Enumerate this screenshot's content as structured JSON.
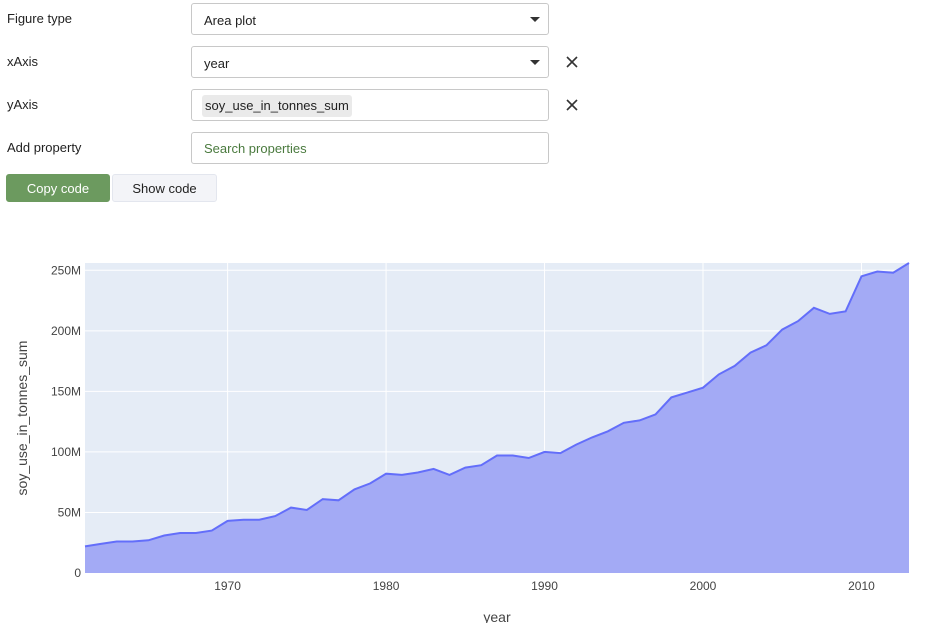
{
  "form": {
    "figure_type": {
      "label": "Figure type",
      "value": "Area plot"
    },
    "x_axis": {
      "label": "xAxis",
      "value": "year"
    },
    "y_axis": {
      "label": "yAxis",
      "value": "soy_use_in_tonnes_sum"
    },
    "add_property": {
      "label": "Add property",
      "placeholder": "Search properties"
    }
  },
  "buttons": {
    "copy_label": "Copy code",
    "show_label": "Show code"
  },
  "icons": {
    "dropdown": "chevron-down-icon",
    "clear": "close-icon"
  },
  "colors": {
    "accent_button": "#6c9a5f",
    "plot_background": "#e5ecf6",
    "area_fill": "#a3aaf5",
    "area_line": "#636efa"
  },
  "chart_data": {
    "type": "area",
    "xlabel": "year",
    "ylabel": "soy_use_in_tonnes_sum",
    "xlim": [
      1961,
      2013
    ],
    "ylim": [
      0,
      256000000
    ],
    "x_ticks": [
      1970,
      1980,
      1990,
      2000,
      2010
    ],
    "x_tick_labels": [
      "1970",
      "1980",
      "1990",
      "2000",
      "2010"
    ],
    "y_ticks": [
      0,
      50000000,
      100000000,
      150000000,
      200000000,
      250000000
    ],
    "y_tick_labels": [
      "0",
      "50M",
      "100M",
      "150M",
      "200M",
      "250M"
    ],
    "grid": true,
    "legend": false,
    "series": [
      {
        "x": [
          1961,
          1962,
          1963,
          1964,
          1965,
          1966,
          1967,
          1968,
          1969,
          1970,
          1971,
          1972,
          1973,
          1974,
          1975,
          1976,
          1977,
          1978,
          1979,
          1980,
          1981,
          1982,
          1983,
          1984,
          1985,
          1986,
          1987,
          1988,
          1989,
          1990,
          1991,
          1992,
          1993,
          1994,
          1995,
          1996,
          1997,
          1998,
          1999,
          2000,
          2001,
          2002,
          2003,
          2004,
          2005,
          2006,
          2007,
          2008,
          2009,
          2010,
          2011,
          2012,
          2013
        ],
        "values": [
          22000000,
          24000000,
          26000000,
          26000000,
          27000000,
          31000000,
          33000000,
          33000000,
          35000000,
          43000000,
          44000000,
          44000000,
          47000000,
          54000000,
          52000000,
          61000000,
          60000000,
          69000000,
          74000000,
          82000000,
          81000000,
          83000000,
          86000000,
          81000000,
          87000000,
          89000000,
          97000000,
          97000000,
          95000000,
          100000000,
          99000000,
          106000000,
          112000000,
          117000000,
          124000000,
          126000000,
          131000000,
          145000000,
          149000000,
          153000000,
          164000000,
          171000000,
          182000000,
          188000000,
          201000000,
          208000000,
          219000000,
          214000000,
          216000000,
          245000000,
          249000000,
          248000000,
          256000000
        ]
      }
    ]
  }
}
